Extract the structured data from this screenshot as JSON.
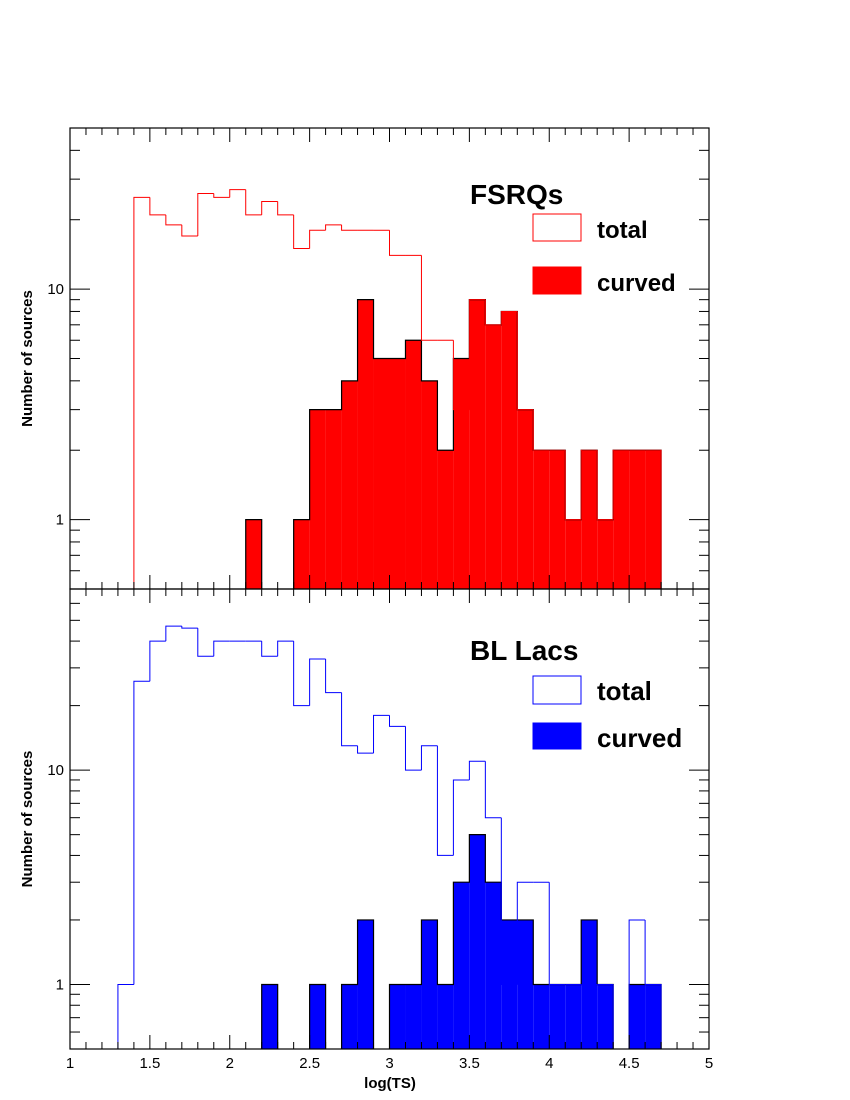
{
  "x_axis": {
    "label": "log(TS)",
    "range": [
      1,
      5
    ],
    "ticks": [
      "1",
      "1.5",
      "2",
      "2.5",
      "3",
      "3.5",
      "4",
      "4.5",
      "5"
    ],
    "bin_width": 0.1
  },
  "chart_data": [
    {
      "type": "bar",
      "style": "step-histogram",
      "scale": "log-y",
      "title": "FSRQs",
      "xlabel": "",
      "ylabel": "Number of sources",
      "xlim": [
        1,
        5
      ],
      "ylim": [
        0.5,
        50
      ],
      "y_ticks": [
        "1",
        "10"
      ],
      "legend_placement": "top-right",
      "series": [
        {
          "name": "total",
          "color": "#ff0000",
          "fill": false,
          "bins": [
            {
              "x": 1.4,
              "y": 25
            },
            {
              "x": 1.5,
              "y": 21
            },
            {
              "x": 1.6,
              "y": 19
            },
            {
              "x": 1.7,
              "y": 17
            },
            {
              "x": 1.8,
              "y": 26
            },
            {
              "x": 1.9,
              "y": 25
            },
            {
              "x": 2.0,
              "y": 27
            },
            {
              "x": 2.1,
              "y": 21
            },
            {
              "x": 2.2,
              "y": 24
            },
            {
              "x": 2.3,
              "y": 21
            },
            {
              "x": 2.4,
              "y": 15
            },
            {
              "x": 2.5,
              "y": 18
            },
            {
              "x": 2.6,
              "y": 19
            },
            {
              "x": 2.7,
              "y": 18
            },
            {
              "x": 2.8,
              "y": 18
            },
            {
              "x": 2.9,
              "y": 18
            },
            {
              "x": 3.0,
              "y": 14
            },
            {
              "x": 3.1,
              "y": 14
            },
            {
              "x": 3.2,
              "y": 6
            },
            {
              "x": 3.3,
              "y": 6
            },
            {
              "x": 3.4,
              "y": 3
            },
            {
              "x": 3.5,
              "y": 9
            },
            {
              "x": 3.6,
              "y": 7
            },
            {
              "x": 3.7,
              "y": 8
            },
            {
              "x": 3.8,
              "y": 3
            },
            {
              "x": 3.9,
              "y": 2
            },
            {
              "x": 4.0,
              "y": 2
            },
            {
              "x": 4.1,
              "y": 1
            },
            {
              "x": 4.2,
              "y": 2
            },
            {
              "x": 4.3,
              "y": 1
            },
            {
              "x": 4.4,
              "y": 2
            },
            {
              "x": 4.5,
              "y": 2
            },
            {
              "x": 4.6,
              "y": 2
            }
          ]
        },
        {
          "name": "curved",
          "color": "#ff0000",
          "fill": true,
          "bins": [
            {
              "x": 2.1,
              "y": 1
            },
            {
              "x": 2.4,
              "y": 1
            },
            {
              "x": 2.5,
              "y": 3
            },
            {
              "x": 2.6,
              "y": 3
            },
            {
              "x": 2.7,
              "y": 4
            },
            {
              "x": 2.8,
              "y": 9
            },
            {
              "x": 2.9,
              "y": 5
            },
            {
              "x": 3.0,
              "y": 5
            },
            {
              "x": 3.1,
              "y": 6
            },
            {
              "x": 3.2,
              "y": 4
            },
            {
              "x": 3.3,
              "y": 2
            },
            {
              "x": 3.4,
              "y": 5
            },
            {
              "x": 3.5,
              "y": 9
            },
            {
              "x": 3.6,
              "y": 7
            },
            {
              "x": 3.7,
              "y": 8
            },
            {
              "x": 3.8,
              "y": 3
            },
            {
              "x": 3.9,
              "y": 2
            },
            {
              "x": 4.0,
              "y": 2
            },
            {
              "x": 4.1,
              "y": 1
            },
            {
              "x": 4.2,
              "y": 2
            },
            {
              "x": 4.3,
              "y": 1
            },
            {
              "x": 4.4,
              "y": 2
            },
            {
              "x": 4.5,
              "y": 2
            },
            {
              "x": 4.6,
              "y": 2
            }
          ]
        }
      ]
    },
    {
      "type": "bar",
      "style": "step-histogram",
      "scale": "log-y",
      "title": "BL Lacs",
      "xlabel": "log(TS)",
      "ylabel": "Number of sources",
      "xlim": [
        1,
        5
      ],
      "ylim": [
        0.5,
        70
      ],
      "y_ticks": [
        "1",
        "10"
      ],
      "legend_placement": "top-right",
      "series": [
        {
          "name": "total",
          "color": "#0000ff",
          "fill": false,
          "bins": [
            {
              "x": 1.3,
              "y": 1
            },
            {
              "x": 1.4,
              "y": 26
            },
            {
              "x": 1.5,
              "y": 40
            },
            {
              "x": 1.6,
              "y": 47
            },
            {
              "x": 1.7,
              "y": 46
            },
            {
              "x": 1.8,
              "y": 34
            },
            {
              "x": 1.9,
              "y": 40
            },
            {
              "x": 2.0,
              "y": 40
            },
            {
              "x": 2.1,
              "y": 40
            },
            {
              "x": 2.2,
              "y": 34
            },
            {
              "x": 2.3,
              "y": 40
            },
            {
              "x": 2.4,
              "y": 20
            },
            {
              "x": 2.5,
              "y": 33
            },
            {
              "x": 2.6,
              "y": 23
            },
            {
              "x": 2.7,
              "y": 13
            },
            {
              "x": 2.8,
              "y": 12
            },
            {
              "x": 2.9,
              "y": 18
            },
            {
              "x": 3.0,
              "y": 16
            },
            {
              "x": 3.1,
              "y": 10
            },
            {
              "x": 3.2,
              "y": 13
            },
            {
              "x": 3.3,
              "y": 4
            },
            {
              "x": 3.4,
              "y": 9
            },
            {
              "x": 3.5,
              "y": 11
            },
            {
              "x": 3.6,
              "y": 6
            },
            {
              "x": 3.7,
              "y": 1
            },
            {
              "x": 3.8,
              "y": 3
            },
            {
              "x": 3.9,
              "y": 3
            },
            {
              "x": 4.0,
              "y": 1
            },
            {
              "x": 4.1,
              "y": 1
            },
            {
              "x": 4.2,
              "y": 1
            },
            {
              "x": 4.3,
              "y": 1
            },
            {
              "x": 4.4,
              "y": 0
            },
            {
              "x": 4.5,
              "y": 2
            },
            {
              "x": 4.6,
              "y": 1
            }
          ]
        },
        {
          "name": "curved",
          "color": "#0000ff",
          "fill": true,
          "bins": [
            {
              "x": 2.2,
              "y": 1
            },
            {
              "x": 2.5,
              "y": 1
            },
            {
              "x": 2.7,
              "y": 1
            },
            {
              "x": 2.8,
              "y": 2
            },
            {
              "x": 3.0,
              "y": 1
            },
            {
              "x": 3.1,
              "y": 1
            },
            {
              "x": 3.2,
              "y": 2
            },
            {
              "x": 3.3,
              "y": 1
            },
            {
              "x": 3.4,
              "y": 3
            },
            {
              "x": 3.5,
              "y": 5
            },
            {
              "x": 3.6,
              "y": 3
            },
            {
              "x": 3.7,
              "y": 2
            },
            {
              "x": 3.8,
              "y": 2
            },
            {
              "x": 3.9,
              "y": 1
            },
            {
              "x": 4.0,
              "y": 1
            },
            {
              "x": 4.1,
              "y": 1
            },
            {
              "x": 4.2,
              "y": 2
            },
            {
              "x": 4.3,
              "y": 1
            },
            {
              "x": 4.5,
              "y": 1
            },
            {
              "x": 4.6,
              "y": 1
            }
          ]
        }
      ]
    }
  ]
}
